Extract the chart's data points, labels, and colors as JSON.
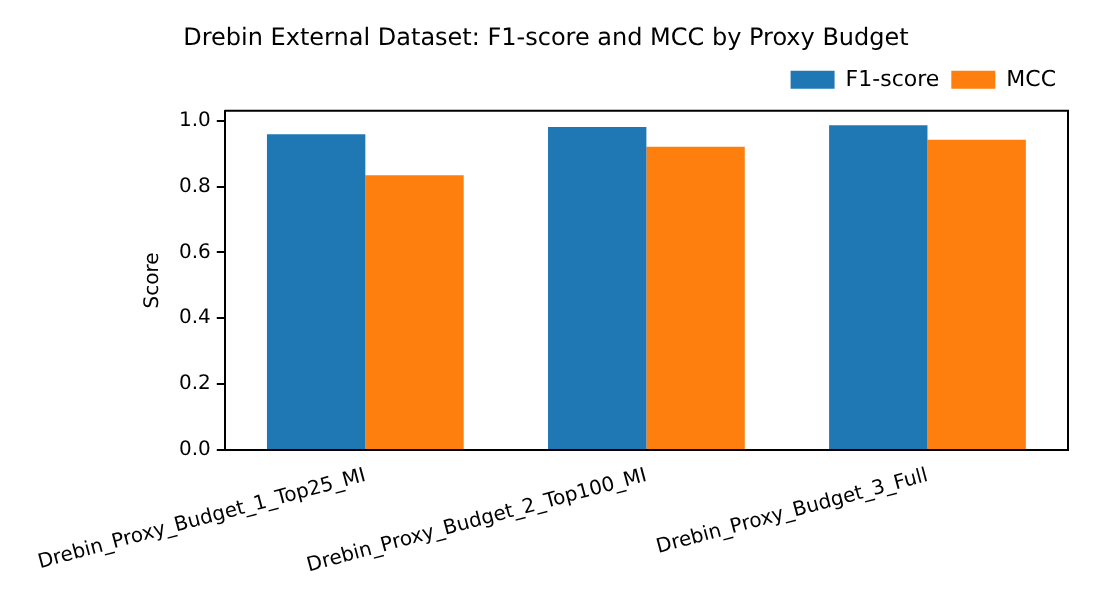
{
  "chart_data": {
    "type": "bar",
    "title": "Drebin External Dataset: F1-score and MCC by Proxy Budget",
    "ylabel": "Score",
    "categories": [
      "Drebin_Proxy_Budget_1_Top25_MI",
      "Drebin_Proxy_Budget_2_Top100_MI",
      "Drebin_Proxy_Budget_3_Full"
    ],
    "series": [
      {
        "name": "F1-score",
        "color": "#1f77b4",
        "values": [
          0.959,
          0.981,
          0.986
        ]
      },
      {
        "name": "MCC",
        "color": "#ff7f0e",
        "values": [
          0.834,
          0.921,
          0.942
        ]
      }
    ],
    "ylim": [
      0,
      1.03
    ],
    "yticks": [
      {
        "value": 0,
        "label": "0.0"
      },
      0.2,
      0.4,
      0.6,
      0.8,
      {
        "value": 1,
        "label": "1.0"
      }
    ],
    "grid": false,
    "legend": "top right"
  }
}
